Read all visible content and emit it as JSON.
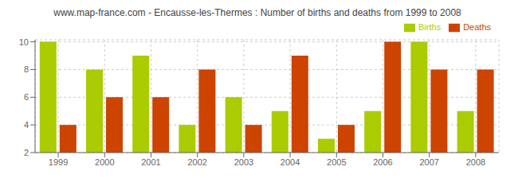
{
  "chart_data": {
    "type": "bar",
    "title": "www.map-france.com - Encausse-les-Thermes : Number of births and deaths from 1999 to 2008",
    "categories": [
      "1999",
      "2000",
      "2001",
      "2002",
      "2003",
      "2004",
      "2005",
      "2006",
      "2007",
      "2008"
    ],
    "series": [
      {
        "name": "Births",
        "color": "#aacc00",
        "values": [
          10,
          8,
          9,
          4,
          6,
          5,
          3,
          5,
          10,
          5
        ]
      },
      {
        "name": "Deaths",
        "color": "#cc4400",
        "values": [
          4,
          6,
          6,
          8,
          4,
          9,
          4,
          10,
          8,
          8
        ]
      }
    ],
    "ylim": [
      2,
      10.15
    ],
    "yticks": [
      2,
      4,
      6,
      8,
      10
    ],
    "grid": true,
    "legend": "upper right"
  }
}
